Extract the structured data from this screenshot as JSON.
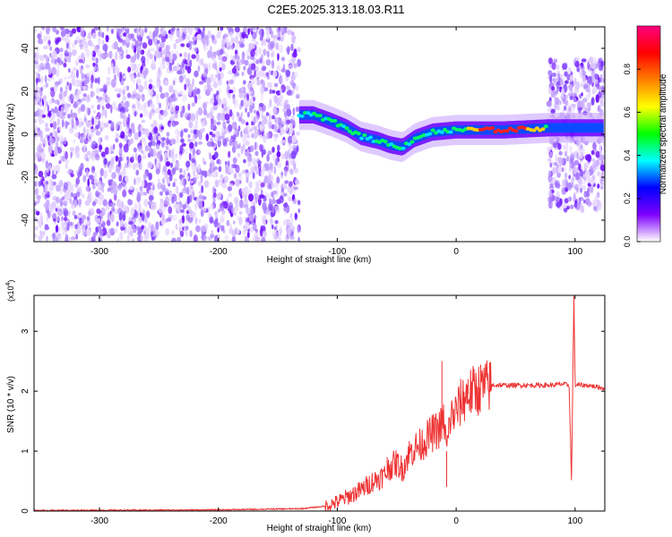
{
  "title": "C2E5.2025.313.18.03.R11",
  "chart_data": [
    {
      "type": "heatmap",
      "panel": "top",
      "xlabel": "Height of straight line (km)",
      "ylabel": "Frequency (Hz)",
      "xlim": [
        -355,
        125
      ],
      "ylim": [
        -50,
        50
      ],
      "xticks": [
        -300,
        -200,
        -100,
        0,
        100
      ],
      "yticks": [
        -40,
        -20,
        0,
        20,
        40
      ],
      "noise_regions": [
        {
          "x_range": [
            -355,
            -132
          ],
          "y_range": [
            -50,
            50
          ]
        },
        {
          "x_range": [
            78,
            125
          ],
          "y_range": [
            -35,
            35
          ]
        }
      ],
      "signal_track": [
        {
          "x": -132,
          "f": 9
        },
        {
          "x": -120,
          "f": 9
        },
        {
          "x": -105,
          "f": 6
        },
        {
          "x": -92,
          "f": 3
        },
        {
          "x": -80,
          "f": -1
        },
        {
          "x": -65,
          "f": -3
        },
        {
          "x": -55,
          "f": -5
        },
        {
          "x": -45,
          "f": -6
        },
        {
          "x": -35,
          "f": -2
        },
        {
          "x": -20,
          "f": 1
        },
        {
          "x": 0,
          "f": 2
        },
        {
          "x": 40,
          "f": 2
        },
        {
          "x": 78,
          "f": 3
        },
        {
          "x": 100,
          "f": 3
        },
        {
          "x": 125,
          "f": 3
        }
      ],
      "colorbar": {
        "label": "Normalized spectral amplitude",
        "range": [
          0.0,
          1.0
        ],
        "ticks": [
          0.0,
          0.2,
          0.4,
          0.6,
          0.8
        ],
        "tick_labels": [
          "0.0",
          "0.2",
          "0.4",
          "0.6",
          "0.8"
        ],
        "colors": [
          "#ffffff",
          "#7f00ff",
          "#0000ff",
          "#00ffff",
          "#00ff00",
          "#ffff00",
          "#ff8000",
          "#ff0000",
          "#ff0080"
        ]
      }
    },
    {
      "type": "line",
      "panel": "bottom",
      "xlabel": "Height of straight line (km)",
      "ylabel": "SNR (10 * v/v)",
      "y_exponent_label": "(x10",
      "y_exponent": "4",
      "y_exponent_close": ")",
      "xlim": [
        -355,
        125
      ],
      "ylim": [
        0,
        3.6
      ],
      "xticks": [
        -300,
        -200,
        -100,
        0,
        100
      ],
      "yticks": [
        0,
        1,
        2,
        3
      ],
      "series": [
        {
          "name": "SNR",
          "color": "#ee3333",
          "x": [
            -355,
            -200,
            -130,
            -110,
            -100,
            -90,
            -80,
            -70,
            -60,
            -55,
            -50,
            -45,
            -40,
            -35,
            -30,
            -25,
            -20,
            -15,
            -10,
            -8,
            -5,
            0,
            5,
            10,
            20,
            30,
            40,
            50,
            60,
            70,
            80,
            90,
            95,
            97,
            99,
            100,
            110,
            125
          ],
          "values": [
            0.01,
            0.02,
            0.04,
            0.08,
            0.15,
            0.25,
            0.35,
            0.5,
            0.6,
            0.75,
            0.8,
            0.7,
            0.95,
            1.05,
            1.1,
            1.2,
            1.3,
            1.35,
            1.5,
            1.0,
            1.55,
            1.65,
            1.85,
            1.95,
            2.05,
            2.1,
            2.1,
            2.1,
            2.1,
            2.1,
            2.1,
            2.12,
            2.1,
            0.5,
            3.6,
            2.1,
            2.1,
            2.05
          ],
          "spikes": [
            {
              "x": -12,
              "y": 2.5
            },
            {
              "x": -8,
              "y": 0.4
            },
            {
              "x": 10,
              "y": 2.2
            },
            {
              "x": -58,
              "y": 0.9
            },
            {
              "x": 97,
              "y": 0.5
            },
            {
              "x": 99,
              "y": 3.6
            }
          ]
        }
      ]
    }
  ]
}
